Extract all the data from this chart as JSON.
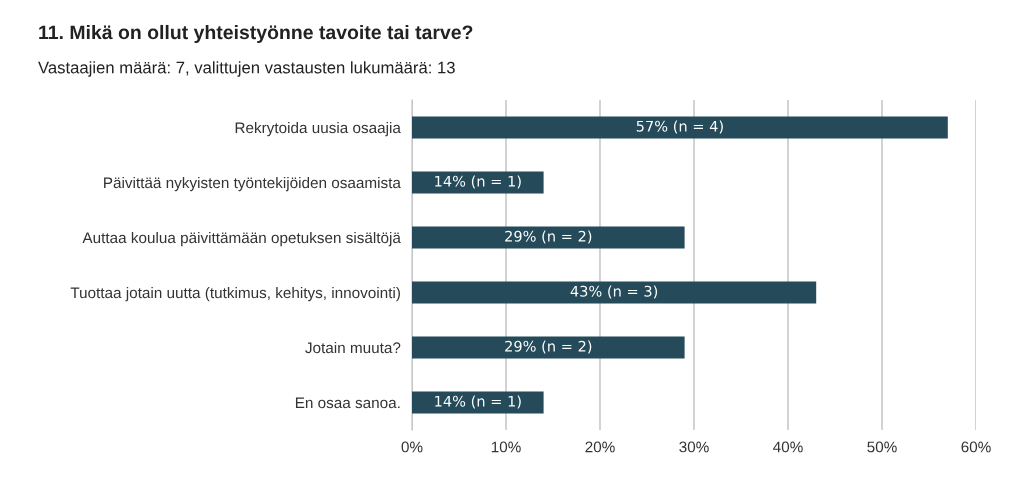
{
  "chart_data": {
    "type": "bar",
    "orientation": "horizontal",
    "title": "11. Mikä on ollut yhteistyönne tavoite tai tarve?",
    "subtitle": "Vastaajien määrä: 7, valittujen vastausten lukumäärä: 13",
    "categories": [
      "Rekrytoida uusia osaajia",
      "Päivittää nykyisten työntekijöiden osaamista",
      "Auttaa koulua päivittämään opetuksen sisältöjä",
      "Tuottaa jotain uutta (tutkimus, kehitys, innovointi)",
      "Jotain muuta?",
      "En osaa sanoa."
    ],
    "values": [
      57,
      14,
      29,
      43,
      29,
      14
    ],
    "value_labels": [
      "57% (n = 4)",
      "14% (n = 1)",
      "29% (n = 2)",
      "43% (n = 3)",
      "29% (n = 2)",
      "14% (n = 1)"
    ],
    "color": "#254b5a",
    "xlim": [
      0,
      60
    ],
    "xticks": [
      {
        "value": 0,
        "label": "0%"
      },
      {
        "value": 10,
        "label": "10%"
      },
      {
        "value": 20,
        "label": "20%"
      },
      {
        "value": 30,
        "label": "30%"
      },
      {
        "value": 40,
        "label": "40%"
      },
      {
        "value": 50,
        "label": "50%"
      },
      {
        "value": 60,
        "label": "60%"
      }
    ],
    "grid": "x"
  }
}
